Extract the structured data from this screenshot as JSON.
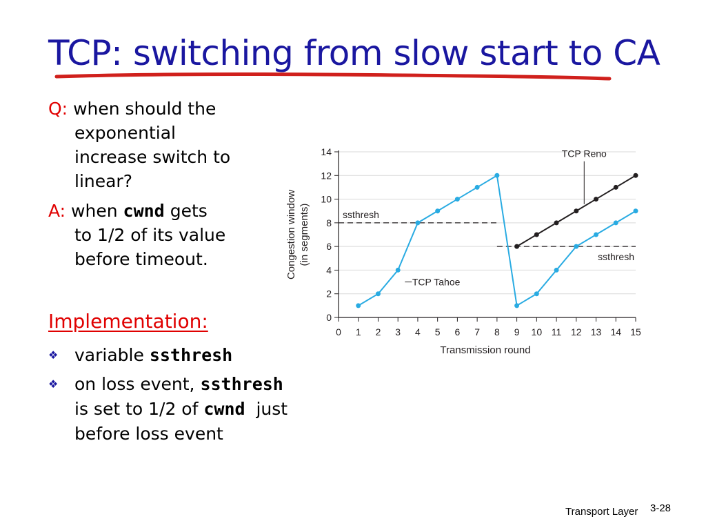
{
  "title": "TCP: switching from slow start to CA",
  "question": {
    "lead": "Q:",
    "line1": "when should the",
    "line2": "exponential",
    "line3": "increase switch to",
    "line4": "linear?"
  },
  "answer": {
    "lead": "A:",
    "pre": "when",
    "code": "cwnd",
    "post": "gets",
    "line2": "to 1/2 of its value",
    "line3": "before timeout."
  },
  "implementation": {
    "heading": "Implementation:",
    "b1_pre": "variable",
    "b1_code": "ssthresh",
    "b2_pre": "on loss event,",
    "b2_code1": "ssthresh",
    "b2_mid": "is set to 1/2 of",
    "b2_code2": "cwnd",
    "b2_post": "just",
    "b2_line3": "before loss event",
    "bullet_icon": "diamond-bullet-icon"
  },
  "footer": {
    "label": "Transport Layer",
    "page": "3-28"
  },
  "chart_data": {
    "type": "line",
    "xlabel": "Transmission round",
    "ylabel_line1": "Congestion window",
    "ylabel_line2": "(in segments)",
    "xlim": [
      0,
      15
    ],
    "ylim": [
      0,
      14
    ],
    "x_ticks": [
      0,
      1,
      2,
      3,
      4,
      5,
      6,
      7,
      8,
      9,
      10,
      11,
      12,
      13,
      14,
      15
    ],
    "y_ticks": [
      0,
      2,
      4,
      6,
      8,
      10,
      12,
      14
    ],
    "grid": "horizontal",
    "series": [
      {
        "name": "TCP Tahoe",
        "color": "#29abe2",
        "x": [
          1,
          2,
          3,
          4,
          5,
          6,
          7,
          8,
          9,
          10,
          11,
          12,
          13,
          14,
          15
        ],
        "values": [
          1,
          2,
          4,
          8,
          9,
          10,
          11,
          12,
          1,
          2,
          4,
          6,
          7,
          8,
          9
        ]
      },
      {
        "name": "TCP Reno",
        "color": "#231f20",
        "x": [
          9,
          10,
          11,
          12,
          13,
          14,
          15
        ],
        "values": [
          6,
          7,
          8,
          9,
          10,
          11,
          12
        ]
      }
    ],
    "thresholds": [
      {
        "label": "ssthresh",
        "value": 8,
        "x_range": [
          0,
          8
        ]
      },
      {
        "label": "ssthresh",
        "value": 6,
        "x_range": [
          8,
          15
        ]
      }
    ],
    "annotations": [
      {
        "text": "TCP Reno",
        "series": 1,
        "at_x": 12.4
      },
      {
        "text": "TCP Tahoe",
        "series": 0,
        "at_x": 3.5
      }
    ]
  }
}
